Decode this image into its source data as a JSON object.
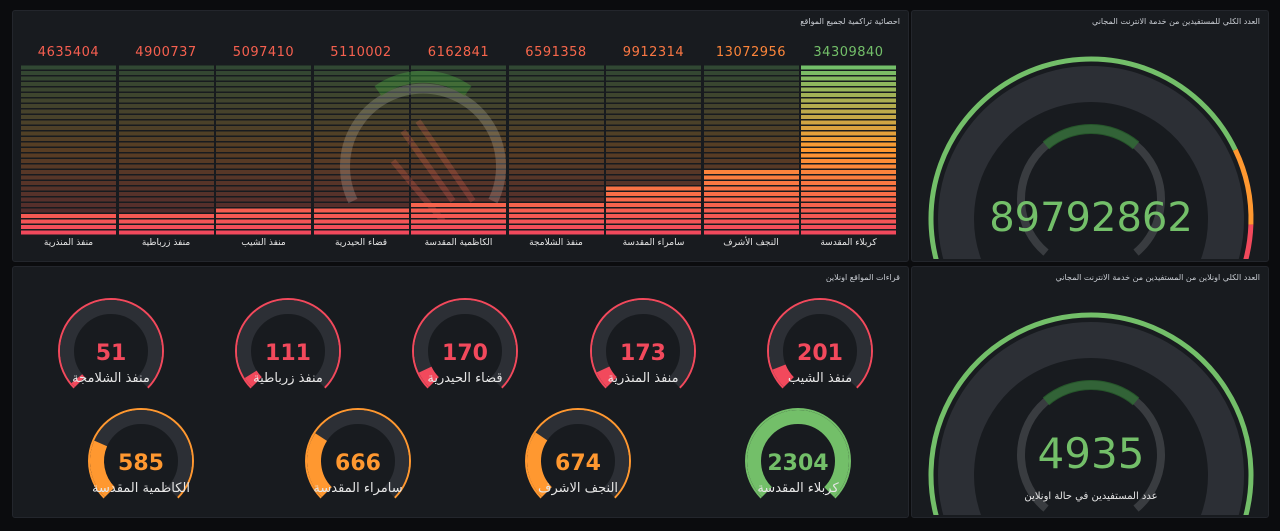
{
  "colors": {
    "green": "#73bf69",
    "orange": "#ff9830",
    "red": "#f2495c",
    "track": "#2c2f35"
  },
  "cumulative": {
    "title": "احصائية تراكمية لجميع المواقع",
    "max": 34309840
  },
  "chart_data": {
    "type": "bar",
    "title": "احصائية تراكمية لجميع المواقع",
    "categories": [
      "منفذ المنذرية",
      "منفذ زرباطية",
      "منفذ الشيب",
      "قضاء الحيدرية",
      "الكاظمية المقدسة",
      "منفذ الشلامجة",
      "سامراء المقدسة",
      "النجف الأشرف",
      "كربلاء المقدسة"
    ],
    "values": [
      4635404,
      4900737,
      5097410,
      5110002,
      6162841,
      6591358,
      9912314,
      13072956,
      34309840
    ],
    "value_labels": [
      "4635404",
      "4900737",
      "5097410",
      "5110002",
      "6162841",
      "6591358",
      "9912314",
      "13072956",
      "34309840"
    ]
  },
  "total": {
    "title": "العدد الكلي للمستفيدين من خدمة الانترنت المجاني",
    "value": "89792862"
  },
  "sites": {
    "title": "قراءات المواقع اونلاين",
    "max": 2304,
    "row1": [
      {
        "value": "51",
        "num": 51,
        "label": "منفذ الشلامجة"
      },
      {
        "value": "111",
        "num": 111,
        "label": "منفذ زرباطية"
      },
      {
        "value": "170",
        "num": 170,
        "label": "قضاء الحيدرية"
      },
      {
        "value": "173",
        "num": 173,
        "label": "منفذ المنذرية"
      },
      {
        "value": "201",
        "num": 201,
        "label": "منفذ الشيب"
      }
    ],
    "row2": [
      {
        "value": "585",
        "num": 585,
        "label": "الكاظمية المقدسة"
      },
      {
        "value": "666",
        "num": 666,
        "label": "سامراء المقدسة"
      },
      {
        "value": "674",
        "num": 674,
        "label": "النجف الاشرف"
      },
      {
        "value": "2304",
        "num": 2304,
        "label": "كربلاء المقدسة"
      }
    ]
  },
  "online": {
    "title": "العدد الكلي اونلاين من المستفيدين من خدمة الانترنت المجاني",
    "value": "4935",
    "caption": "عدد المستفيدين في حالة اونلاين"
  }
}
